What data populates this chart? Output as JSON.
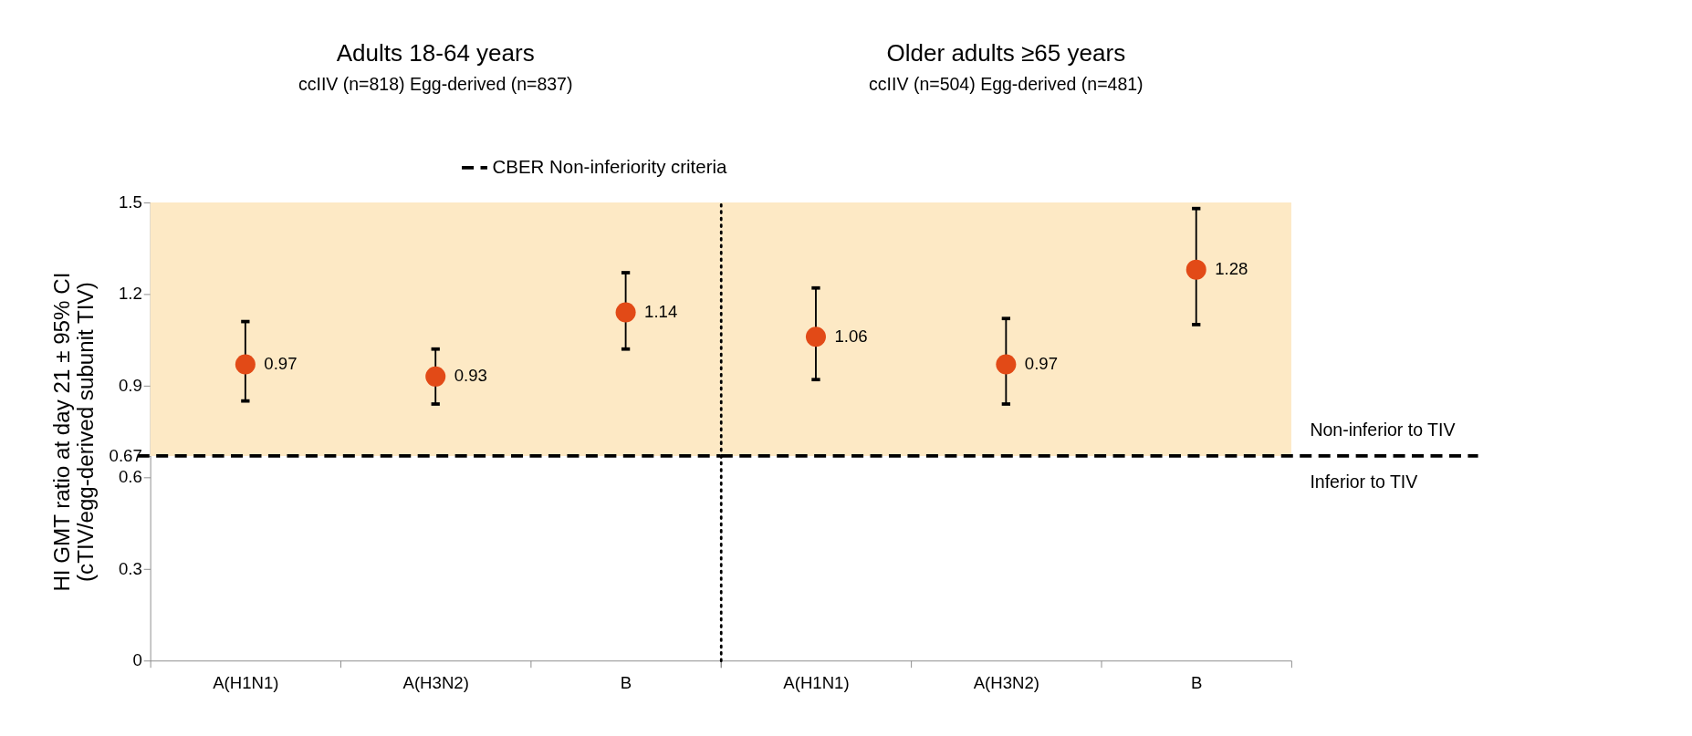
{
  "chart_data": [
    {
      "type": "scatter",
      "title": "Adults 18-64 years",
      "subtitle": "ccIIV (n=818) Egg-derived (n=837)",
      "ylabel": "HI GMT ratio at day 21 ± 95% CI\n(cTIV/egg-derived subunit TIV)",
      "categories": [
        "A(H1N1)",
        "A(H3N2)",
        "B"
      ],
      "series": [
        {
          "color": "#e24a17",
          "values": [
            0.97,
            0.93,
            1.14
          ],
          "errors": [
            [
              0.85,
              1.11
            ],
            [
              0.84,
              1.02
            ],
            [
              1.02,
              1.27
            ]
          ]
        }
      ],
      "ylim": [
        0,
        1.5
      ],
      "yticks": [
        0,
        0.3,
        0.6,
        0.67,
        0.9,
        1.2,
        1.5
      ],
      "grid": false,
      "marker": "circle",
      "data_labels": true,
      "legend": "top",
      "ref_lines": [
        {
          "axis": "y",
          "value": 0.67,
          "label": "CBER Non-inferiority criteria",
          "line_style": "dashed",
          "color": "#000000"
        }
      ],
      "bands": [
        {
          "axis": "y",
          "from": 0.67,
          "to": 1.5,
          "color": "#fde9c5"
        }
      ]
    },
    {
      "type": "scatter",
      "title": "Older adults ≥65 years",
      "subtitle": "ccIIV (n=504) Egg-derived (n=481)",
      "categories": [
        "A(H1N1)",
        "A(H3N2)",
        "B"
      ],
      "series": [
        {
          "color": "#e24a17",
          "values": [
            1.06,
            0.97,
            1.28
          ],
          "errors": [
            [
              0.92,
              1.22
            ],
            [
              0.84,
              1.12
            ],
            [
              1.1,
              1.48
            ]
          ]
        }
      ],
      "ylim": [
        0,
        1.5
      ],
      "tick_labels": "x",
      "grid": false,
      "marker": "circle",
      "data_labels": true,
      "ref_lines": [
        {
          "axis": "y",
          "value": 0.67,
          "line_style": "dashed",
          "color": "#000000"
        }
      ],
      "bands": [
        {
          "axis": "y",
          "from": 0.67,
          "to": 1.5,
          "color": "#fde9c5"
        }
      ],
      "annotations": [
        "Non-inferior to TIV",
        "Inferior to TIV"
      ]
    }
  ]
}
